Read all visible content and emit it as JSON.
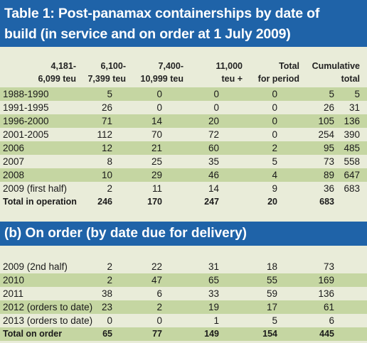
{
  "title": {
    "line1": "Table 1: Post-panamax containerships by date of",
    "line2": "build  (in service and on order at 1 July 2009)"
  },
  "headers": {
    "c1a": "4,181-",
    "c1b": "6,099 teu",
    "c2a": "6,100-",
    "c2b": "7,399 teu",
    "c3a": "7,400-",
    "c3b": "10,999 teu",
    "c4a": "11,000",
    "c4b": "teu +",
    "c5a": "Total",
    "c5b": "for period",
    "c6a": "Cumulative",
    "c6b": "total"
  },
  "in_service": [
    {
      "label": "1988-1990",
      "c1": "5",
      "c2": "0",
      "c3": "0",
      "c4": "0",
      "total": "5",
      "cum": "5"
    },
    {
      "label": "1991-1995",
      "c1": "26",
      "c2": "0",
      "c3": "0",
      "c4": "0",
      "total": "26",
      "cum": "31"
    },
    {
      "label": "1996-2000",
      "c1": "71",
      "c2": "14",
      "c3": "20",
      "c4": "0",
      "total": "105",
      "cum": "136"
    },
    {
      "label": "2001-2005",
      "c1": "112",
      "c2": "70",
      "c3": "72",
      "c4": "0",
      "total": "254",
      "cum": "390"
    },
    {
      "label": "2006",
      "c1": "12",
      "c2": "21",
      "c3": "60",
      "c4": "2",
      "total": "95",
      "cum": "485"
    },
    {
      "label": "2007",
      "c1": "8",
      "c2": "25",
      "c3": "35",
      "c4": "5",
      "total": "73",
      "cum": "558"
    },
    {
      "label": "2008",
      "c1": "10",
      "c2": "29",
      "c3": "46",
      "c4": "4",
      "total": "89",
      "cum": "647"
    },
    {
      "label": "2009 (first half)",
      "c1": "2",
      "c2": "11",
      "c3": "14",
      "c4": "9",
      "total": "36",
      "cum": "683"
    }
  ],
  "in_service_total": {
    "label": "Total in operation",
    "c1": "246",
    "c2": "170",
    "c3": "247",
    "c4": "20",
    "total": "683",
    "cum": ""
  },
  "section_b_title": "(b) On order (by date due for delivery)",
  "on_order": [
    {
      "label": "2009 (2nd half)",
      "c1": "2",
      "c2": "22",
      "c3": "31",
      "c4": "18",
      "total": "73"
    },
    {
      "label": "2010",
      "c1": "2",
      "c2": "47",
      "c3": "65",
      "c4": "55",
      "total": "169"
    },
    {
      "label": "2011",
      "c1": "38",
      "c2": "6",
      "c3": "33",
      "c4": "59",
      "total": "136"
    },
    {
      "label": "2012 (orders to date)",
      "c1": "23",
      "c2": "2",
      "c3": "19",
      "c4": "17",
      "total": "61"
    },
    {
      "label": "2013 (orders to date)",
      "c1": "0",
      "c2": "0",
      "c3": "1",
      "c4": "5",
      "total": "6"
    }
  ],
  "on_order_total": {
    "label": "Total on order",
    "c1": "65",
    "c2": "77",
    "c3": "149",
    "c4": "154",
    "total": "445"
  },
  "colors": {
    "header_blue": "#1f63a8",
    "band_green": "#c5d6a2",
    "background": "#e9ecd9"
  }
}
